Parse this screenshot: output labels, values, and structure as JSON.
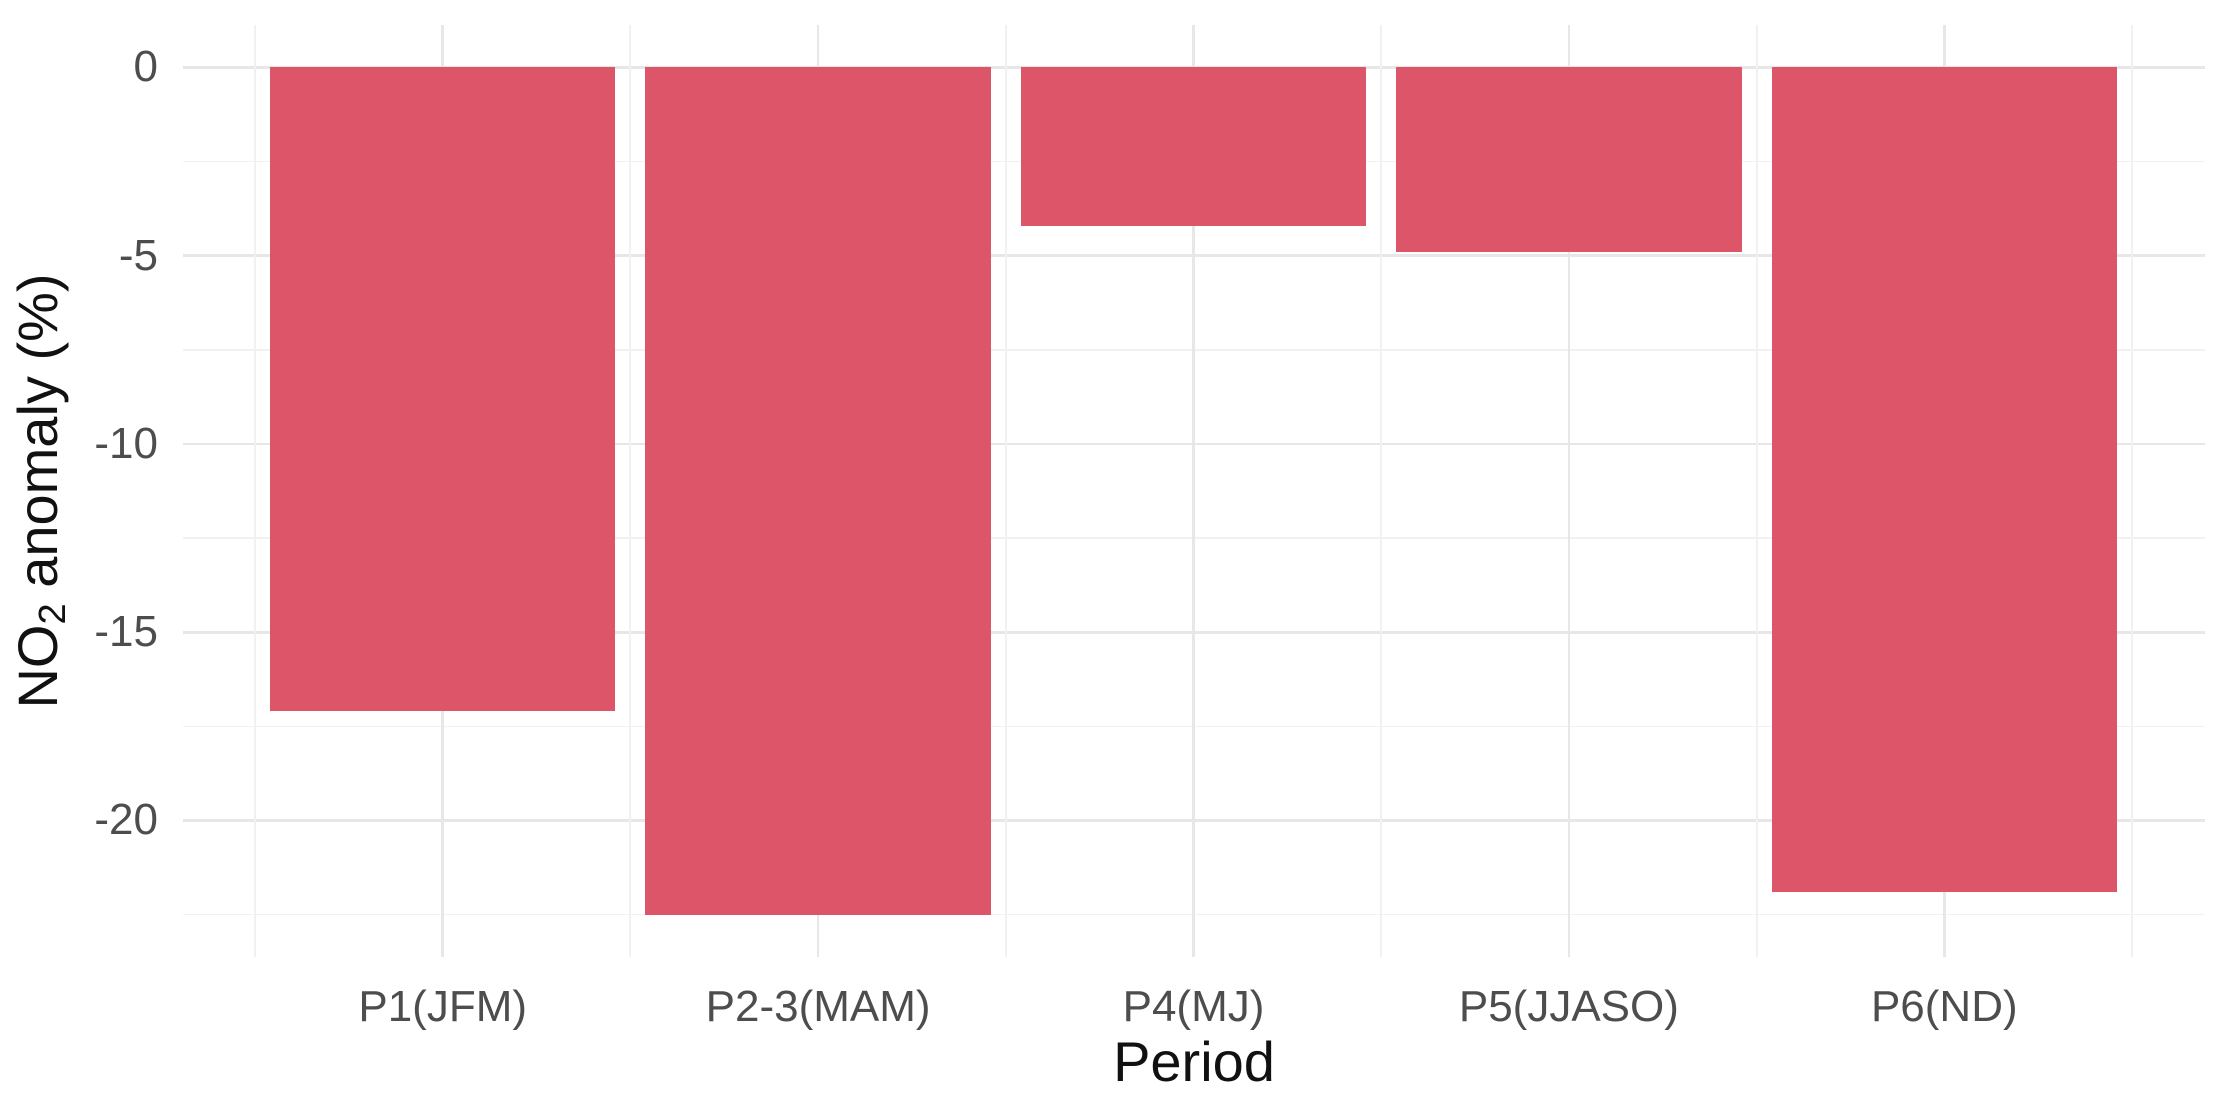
{
  "figure": {
    "background": "#FFFFFF"
  },
  "colors": {
    "bar": "#DC5569",
    "tick_text": "#4D4D4D",
    "title_text": "#111111",
    "grid_major": "#E7E7E7",
    "grid_minor": "#F1F1F1"
  },
  "chart_data": {
    "type": "bar",
    "title": "",
    "categories": [
      "P1(JFM)",
      "P2-3(MAM)",
      "P4(MJ)",
      "P5(JJASO)",
      "P6(ND)"
    ],
    "values": [
      -17.1,
      -22.5,
      -4.2,
      -4.9,
      -21.9
    ],
    "bar_color": "#DC5569",
    "xlabel": "Period",
    "ylabel": {
      "prefix": "NO",
      "sub": "2",
      "suffix": " anomaly (%)"
    },
    "ylim": {
      "min": -23.625,
      "max": 1.125
    },
    "yticks_major": [
      0,
      -5,
      -10,
      -15,
      -20
    ],
    "ytick_labels": [
      "0",
      "-5",
      "-10",
      "-15",
      "-20"
    ],
    "yticks_minor": [
      -2.5,
      -7.5,
      -12.5,
      -17.5,
      -22.5
    ],
    "grid": true,
    "legend": false,
    "orientation": "vertical",
    "bars_extend_downward_from_zero": true
  }
}
